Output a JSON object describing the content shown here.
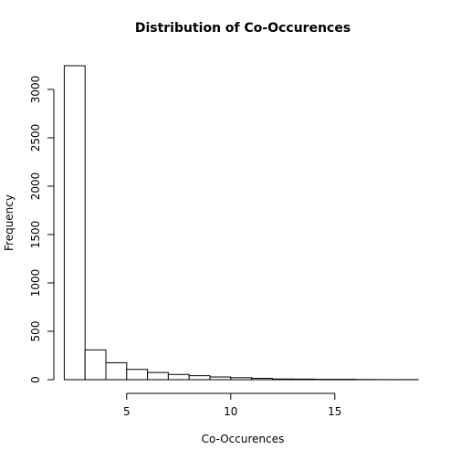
{
  "chart_data": {
    "type": "bar",
    "title": "Distribution of Co-Occurences",
    "xlabel": "Co-Occurences",
    "ylabel": "Frequency",
    "bins": [
      {
        "start": 2,
        "end": 3,
        "count": 3245
      },
      {
        "start": 3,
        "end": 4,
        "count": 308
      },
      {
        "start": 4,
        "end": 5,
        "count": 175
      },
      {
        "start": 5,
        "end": 6,
        "count": 106
      },
      {
        "start": 6,
        "end": 7,
        "count": 74
      },
      {
        "start": 7,
        "end": 8,
        "count": 54
      },
      {
        "start": 8,
        "end": 9,
        "count": 41
      },
      {
        "start": 9,
        "end": 10,
        "count": 28
      },
      {
        "start": 10,
        "end": 11,
        "count": 21
      },
      {
        "start": 11,
        "end": 12,
        "count": 14
      },
      {
        "start": 12,
        "end": 13,
        "count": 7
      },
      {
        "start": 13,
        "end": 14,
        "count": 6
      },
      {
        "start": 14,
        "end": 15,
        "count": 4
      },
      {
        "start": 15,
        "end": 16,
        "count": 4
      },
      {
        "start": 16,
        "end": 17,
        "count": 2
      },
      {
        "start": 17,
        "end": 18,
        "count": 1
      },
      {
        "start": 18,
        "end": 19,
        "count": 1
      }
    ],
    "xlim": [
      1.5,
      19
    ],
    "ylim": [
      0,
      3245
    ],
    "x_ticks": [
      5,
      10,
      15
    ],
    "x_tick_labels": [
      "5",
      "10",
      "15"
    ],
    "y_ticks": [
      0,
      500,
      1000,
      1500,
      2000,
      2500,
      3000
    ],
    "y_tick_labels": [
      "0",
      "500",
      "1000",
      "1500",
      "2000",
      "2500",
      "3000"
    ],
    "grid": false,
    "legend": "none"
  }
}
